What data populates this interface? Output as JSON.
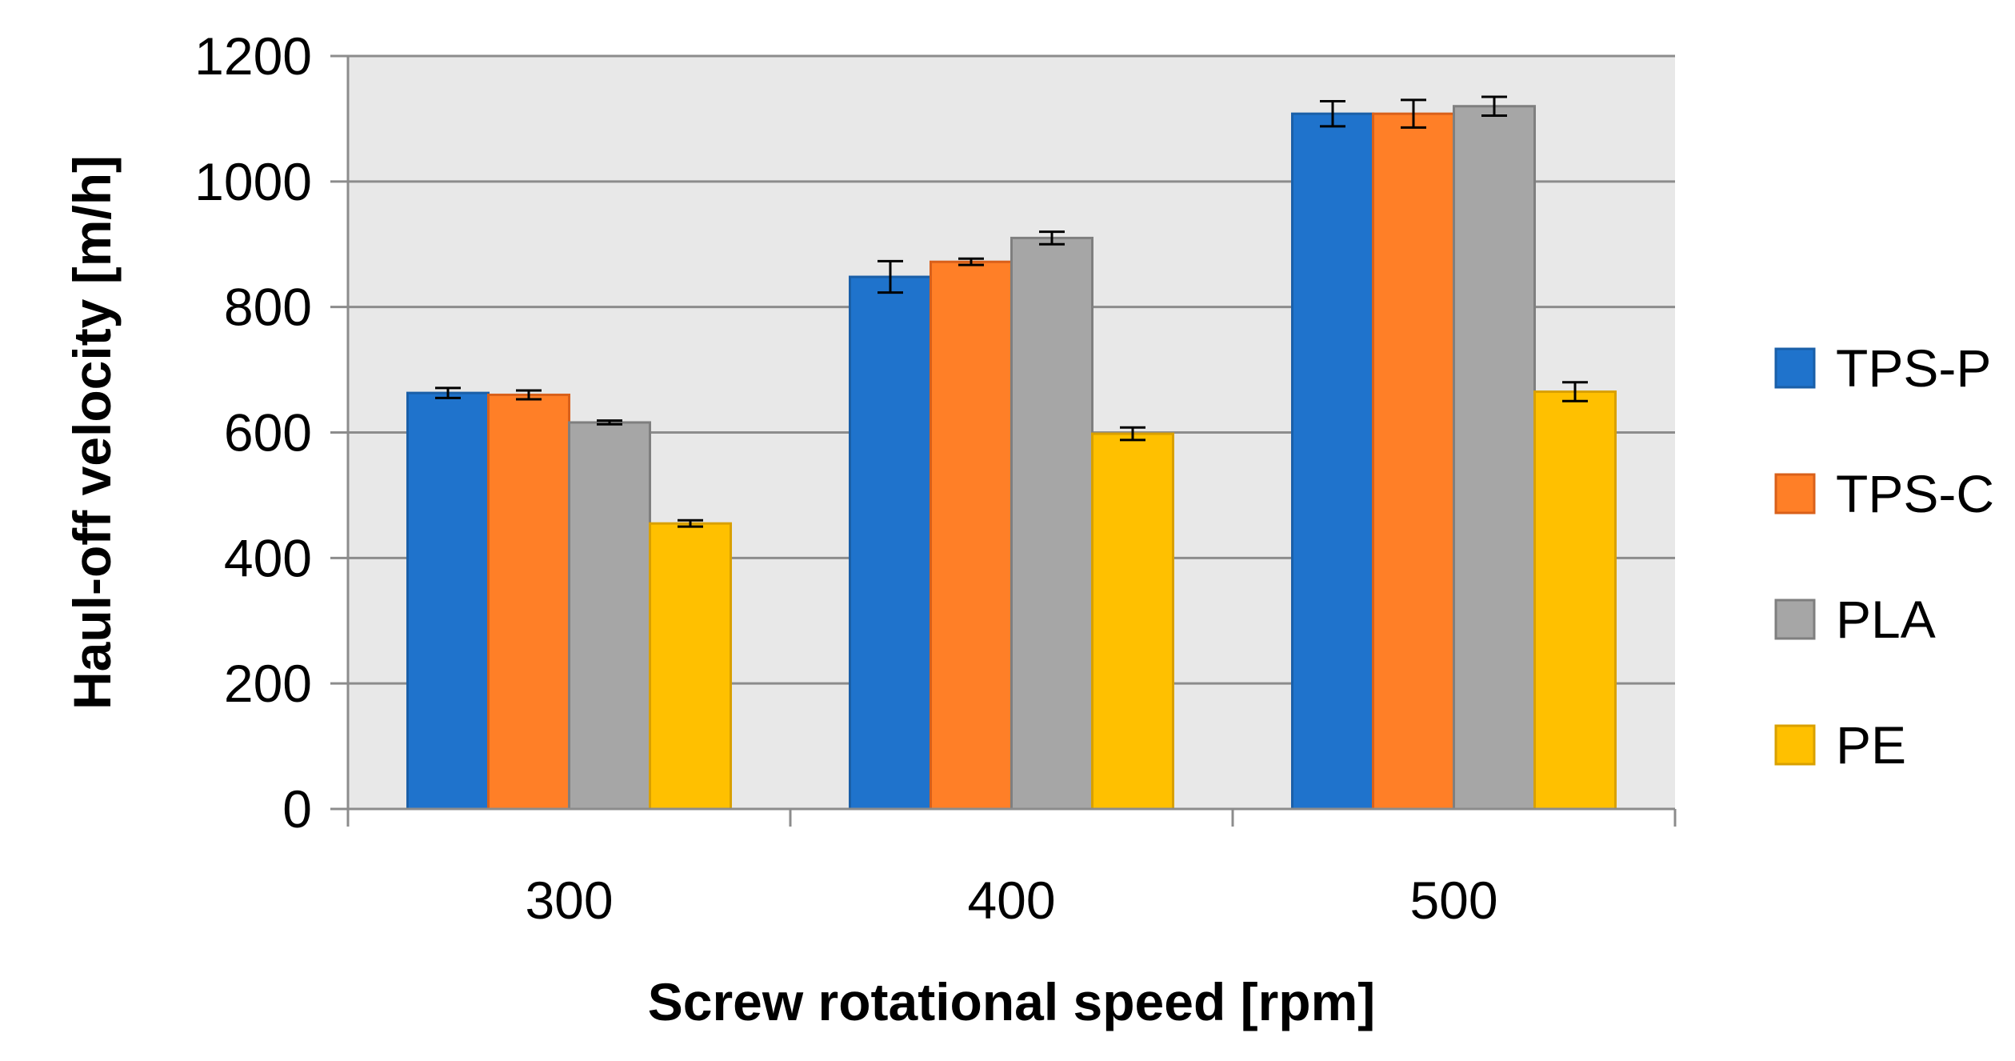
{
  "chart_data": {
    "type": "bar",
    "title": "",
    "xlabel": "Screw rotational speed [rpm]",
    "ylabel": "Haul-off velocity [m/h]",
    "categories": [
      "300",
      "400",
      "500"
    ],
    "ylim": [
      0,
      1200
    ],
    "yticks": [
      0,
      200,
      400,
      600,
      800,
      1000,
      1200
    ],
    "ytick_labels": [
      "0",
      "200",
      "400",
      "600",
      "800",
      "1000",
      "1200"
    ],
    "grid": true,
    "legend_position": "right",
    "series": [
      {
        "name": "TPS-P",
        "color": "#1F73CC",
        "border": "#1A5FA8",
        "values": [
          663,
          848,
          1108
        ],
        "errors": [
          8,
          25,
          20
        ]
      },
      {
        "name": "TPS-C",
        "color": "#FF7F27",
        "border": "#D9601A",
        "values": [
          660,
          872,
          1108
        ],
        "errors": [
          7,
          5,
          22
        ]
      },
      {
        "name": "PLA",
        "color": "#A6A6A6",
        "border": "#7F7F7F",
        "values": [
          616,
          910,
          1120
        ],
        "errors": [
          3,
          10,
          15
        ]
      },
      {
        "name": "PE",
        "color": "#FFC000",
        "border": "#D9A000",
        "values": [
          455,
          598,
          665
        ],
        "errors": [
          5,
          10,
          15
        ]
      }
    ],
    "colors": {
      "plot_background": "#E8E8E8",
      "gridline": "#8C8C8C",
      "axis": "#8C8C8C",
      "error_bar": "#000000"
    }
  }
}
